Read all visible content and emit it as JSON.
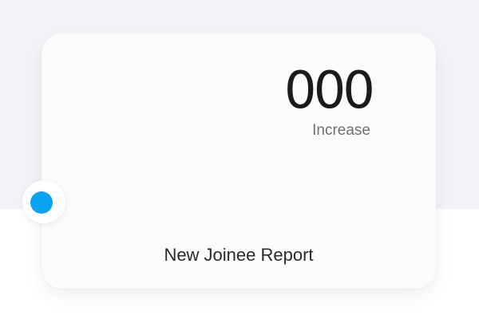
{
  "card": {
    "value": "000",
    "value_caption": "Increase",
    "title": "New Joinee Report"
  },
  "indicator": {
    "color": "#0aa3f2"
  }
}
